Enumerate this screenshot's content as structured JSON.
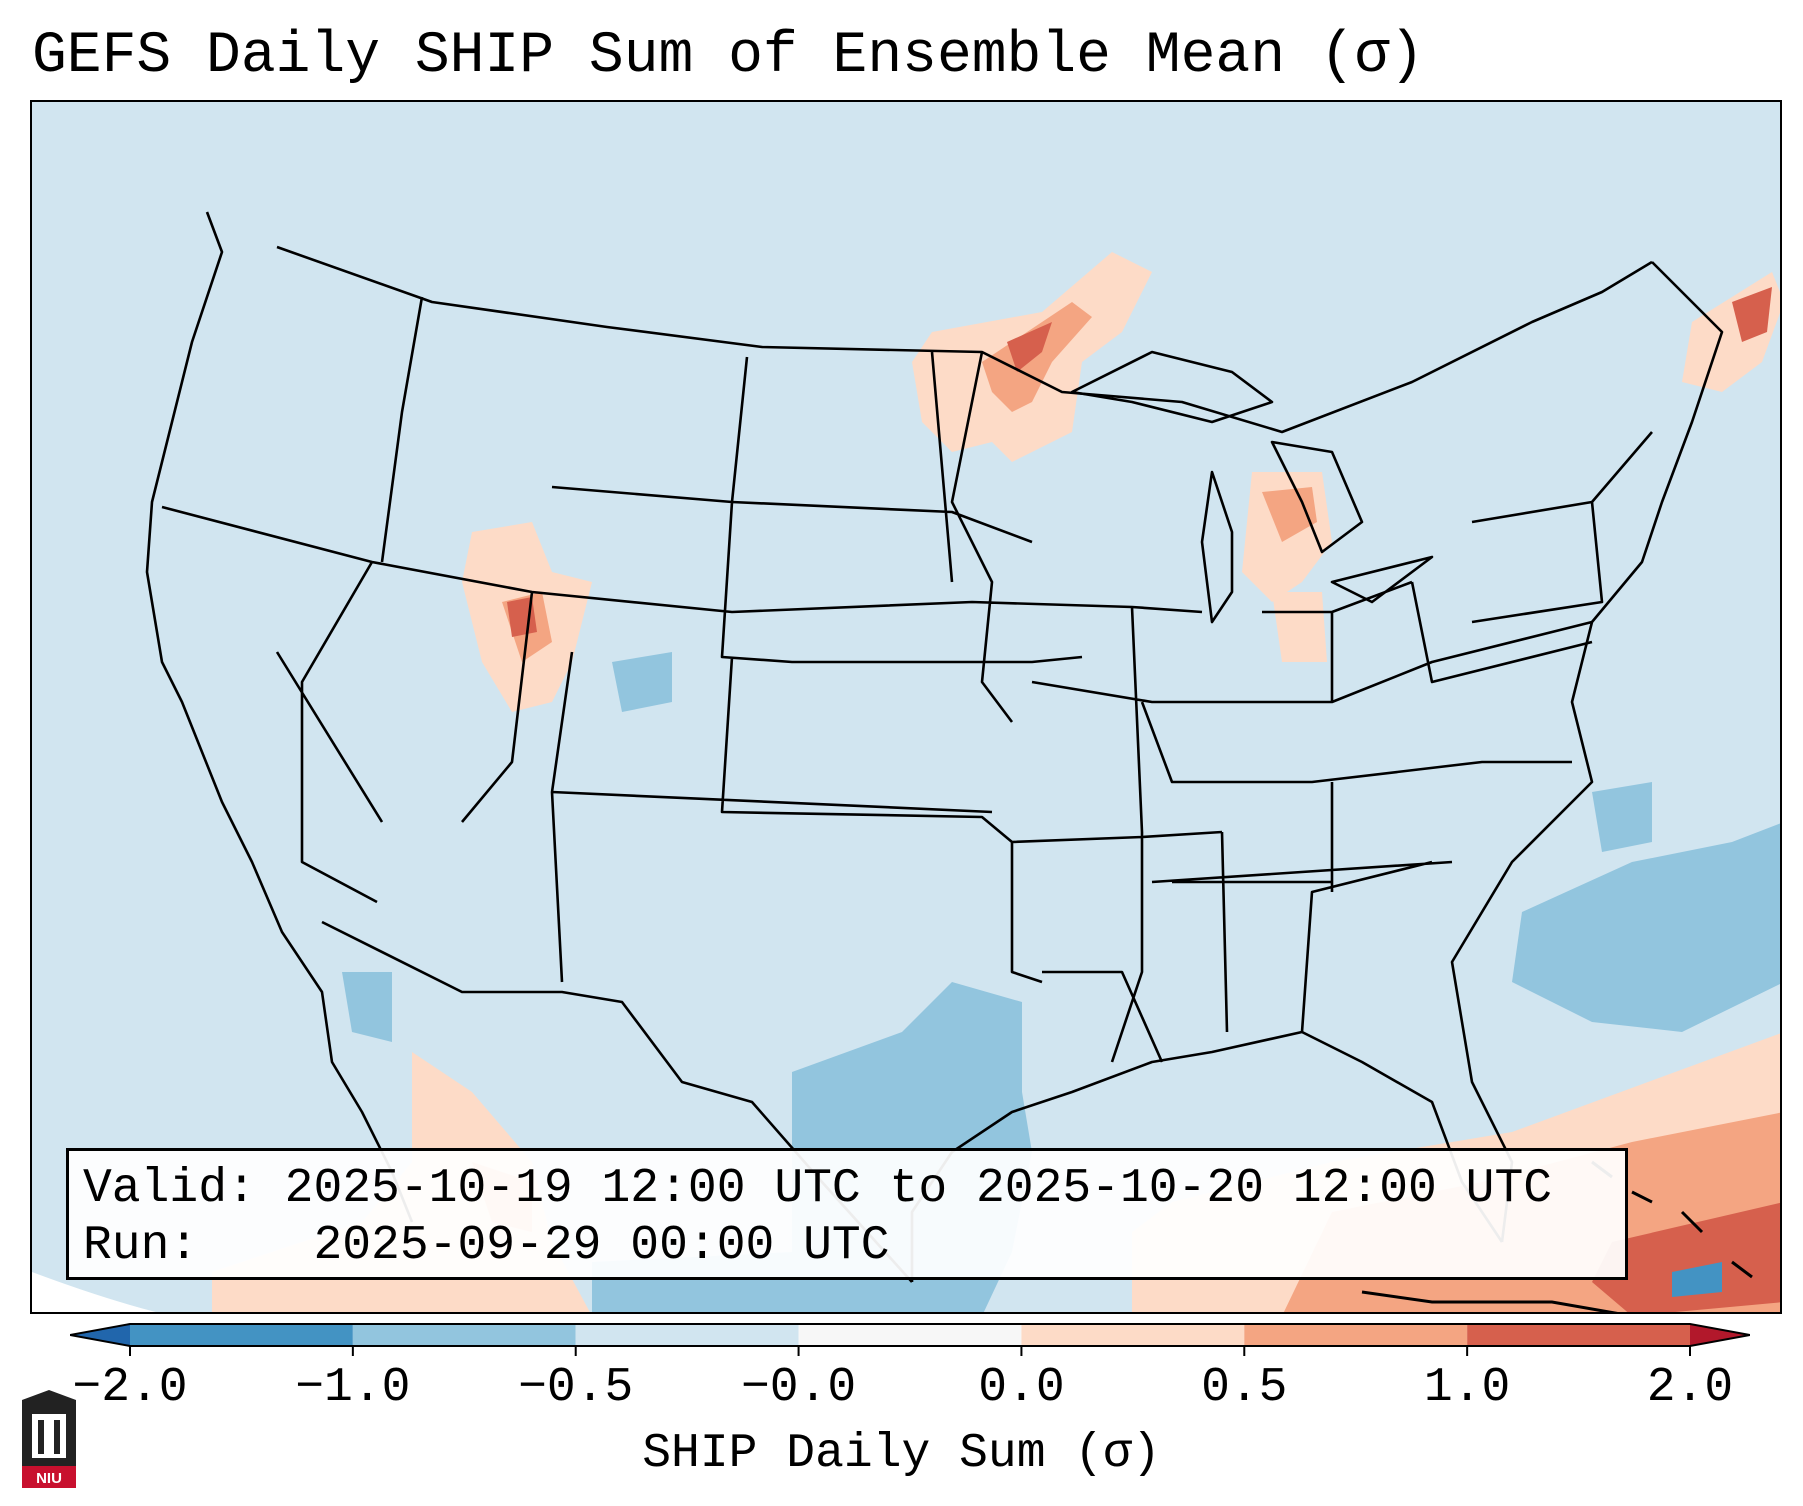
{
  "title": "GEFS Daily SHIP Sum of Ensemble Mean (σ)",
  "info": {
    "valid_label": "Valid:",
    "valid_value": "2025-10-19 12:00 UTC to 2025-10-20 12:00 UTC",
    "run_label": "Run:",
    "run_value": "2025-09-29 00:00 UTC"
  },
  "colorbar": {
    "label": "SHIP Daily Sum (σ)",
    "ticks": [
      "−2.0",
      "−1.0",
      "−0.5",
      "−0.0",
      "0.0",
      "0.5",
      "1.0",
      "2.0"
    ],
    "colors": [
      "#4393c3",
      "#92c5de",
      "#d1e5f0",
      "#f7f7f7",
      "#fddbc7",
      "#f4a582",
      "#d6604d",
      "#b2182b"
    ],
    "extend_low_color": "#2166ac",
    "extend_high_color": "#b2182b"
  },
  "map": {
    "background_color": "#d1e5f0",
    "region": "Continental United States"
  },
  "logo": {
    "text": "NIU",
    "icon": "niu-tower-logo"
  }
}
